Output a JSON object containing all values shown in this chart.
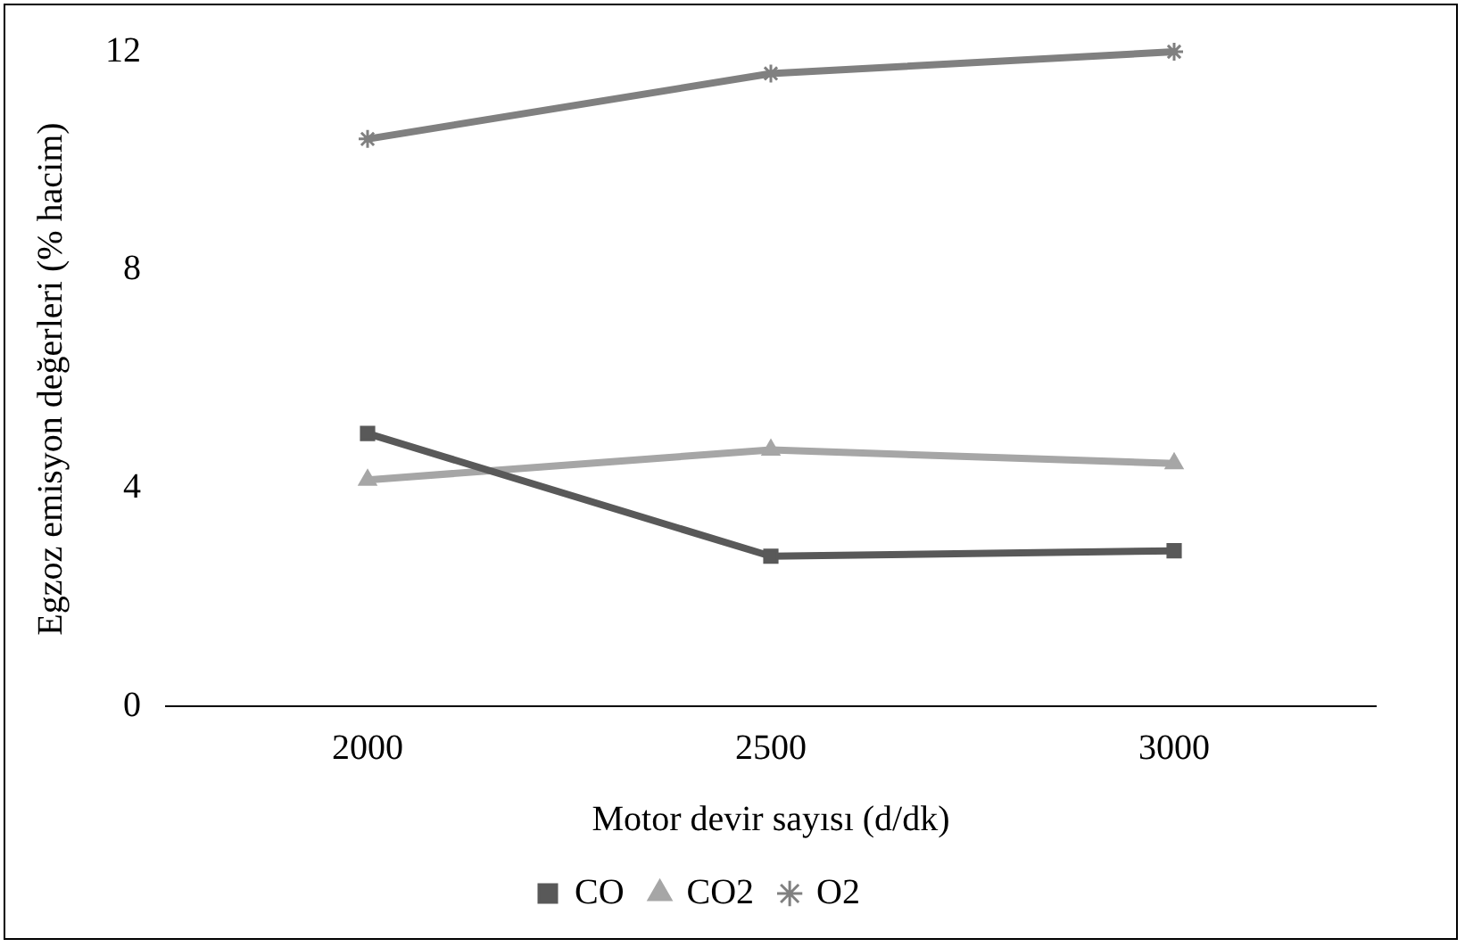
{
  "chart_data": {
    "type": "line",
    "xlabel": "Motor devir sayısı (d/dk)",
    "ylabel": "Egzoz emisyon değerleri (% hacim)",
    "categories": [
      "2000",
      "2500",
      "3000"
    ],
    "ylim": [
      0,
      12
    ],
    "yticks": [
      0,
      4,
      8,
      12
    ],
    "grid": false,
    "legend": "bottom",
    "line_style": "solid",
    "series": [
      {
        "name": "CO",
        "color": "#595959",
        "marker": "square",
        "values": [
          5.0,
          2.75,
          2.85
        ]
      },
      {
        "name": "CO2",
        "color": "#a6a6a6",
        "marker": "triangle",
        "values": [
          4.15,
          4.7,
          4.45
        ]
      },
      {
        "name": "O2",
        "color": "#808080",
        "marker": "cross",
        "values": [
          10.4,
          11.6,
          12.0
        ]
      }
    ]
  }
}
